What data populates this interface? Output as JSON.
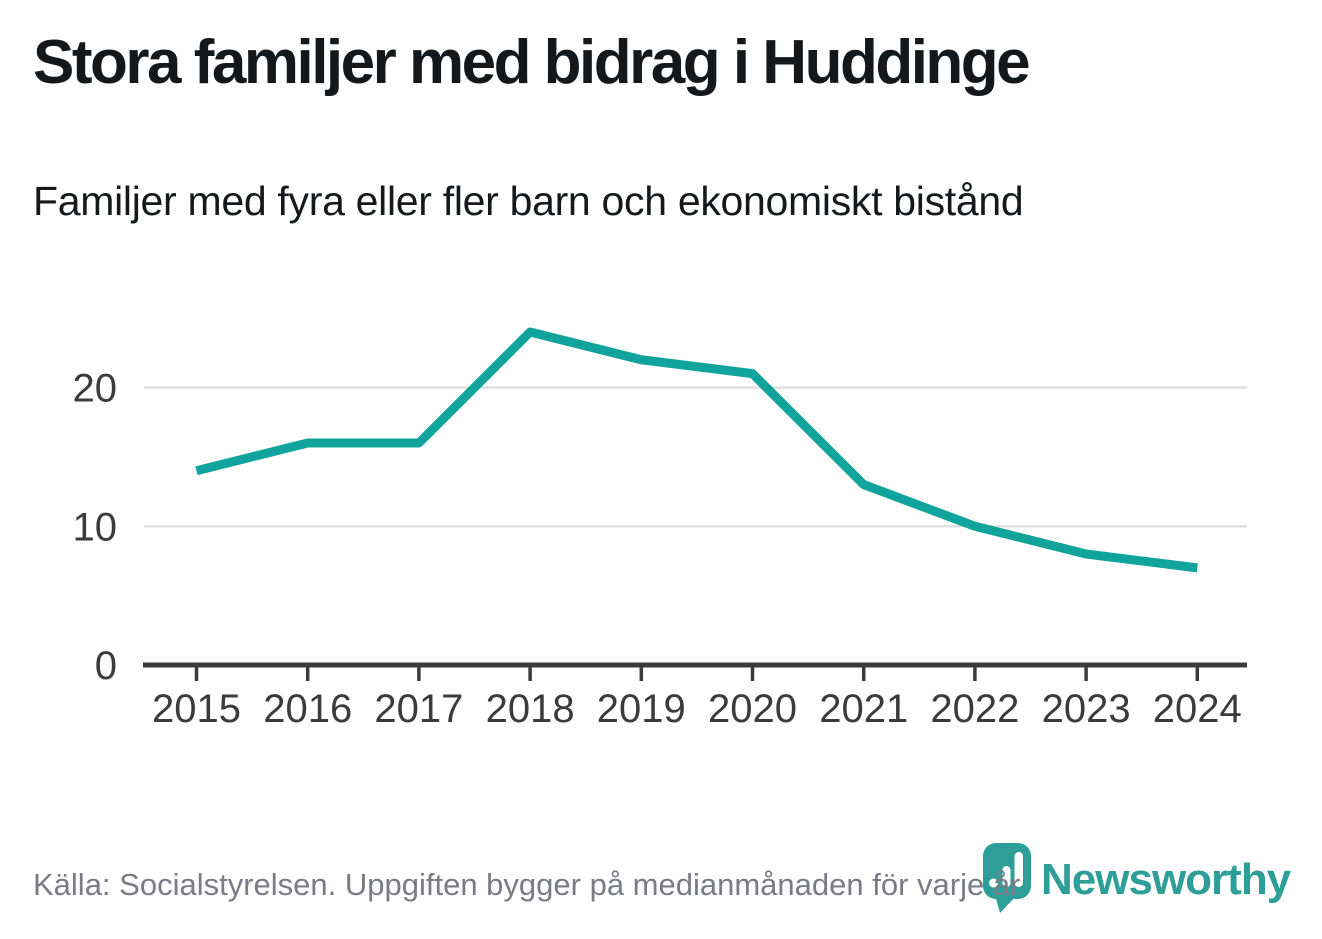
{
  "header": {
    "title": "Stora familjer med bidrag i Huddinge",
    "subtitle": "Familjer med fyra eller fler barn och ekonomiskt bistånd"
  },
  "footer": {
    "source": "Källa: Socialstyrelsen. Uppgiften bygger på medianmånaden för varje år"
  },
  "logo": {
    "brand": "Newsworthy",
    "icon": "chart-speech-bubble-icon"
  },
  "colors": {
    "accent_line": "#10a49d",
    "logo_teal": "#2e9e98",
    "grid": "#e1e1e1",
    "axis": "#3b3b3b",
    "text_dark": "#14181b",
    "text_muted": "#7b7b85"
  },
  "chart_data": {
    "type": "line",
    "title": "Stora familjer med bidrag i Huddinge",
    "subtitle": "Familjer med fyra eller fler barn och ekonomiskt bistånd",
    "source": "Källa: Socialstyrelsen. Uppgiften bygger på medianmånaden för varje år",
    "x": [
      2015,
      2016,
      2017,
      2018,
      2019,
      2020,
      2021,
      2022,
      2023,
      2024
    ],
    "series": [
      {
        "name": "Familjer med fyra eller fler barn och ekonomiskt bistånd",
        "values": [
          14,
          16,
          16,
          24,
          22,
          21,
          13,
          10,
          8,
          7
        ]
      }
    ],
    "xlabel": "",
    "ylabel": "",
    "ylim": [
      0,
      26
    ],
    "yticks": [
      0,
      10,
      20
    ],
    "grid": "horizontal-only",
    "legend": "none",
    "line_color": "#10a49d"
  }
}
